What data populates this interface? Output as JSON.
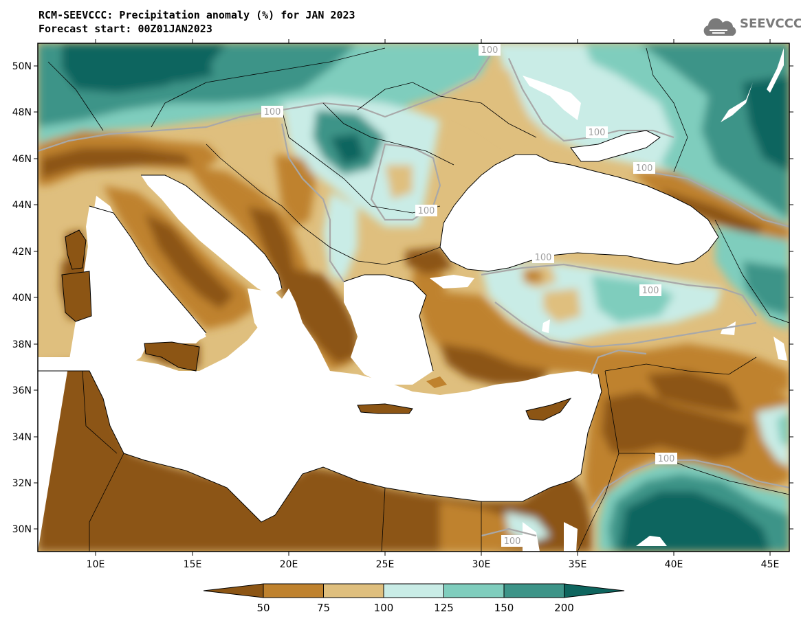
{
  "header": {
    "title_line1": "RCM-SEEVCCC: Precipitation anomaly (%) for JAN 2023",
    "title_line2": "Forecast start: 00Z01JAN2023"
  },
  "logo": {
    "text": "SEEVCCC",
    "icon": "cloud-icon"
  },
  "axes": {
    "lat_labels": [
      "50N",
      "48N",
      "46N",
      "44N",
      "42N",
      "40N",
      "38N",
      "36N",
      "34N",
      "32N",
      "30N"
    ],
    "lon_labels": [
      "10E",
      "15E",
      "20E",
      "25E",
      "30E",
      "35E",
      "40E",
      "45E"
    ]
  },
  "contour_label": "100",
  "colorbar": {
    "labels": [
      "50",
      "75",
      "100",
      "125",
      "150",
      "200"
    ],
    "colors": [
      "#8c5514",
      "#bf822e",
      "#dfbf7e",
      "#c9ece6",
      "#7fcdbd",
      "#3d9488",
      "#0e655e"
    ]
  },
  "colors": {
    "land_fill": "#dfbf7e",
    "water": "#ffffff",
    "outline": "#000000",
    "contour_line": "#a8a8a8"
  }
}
